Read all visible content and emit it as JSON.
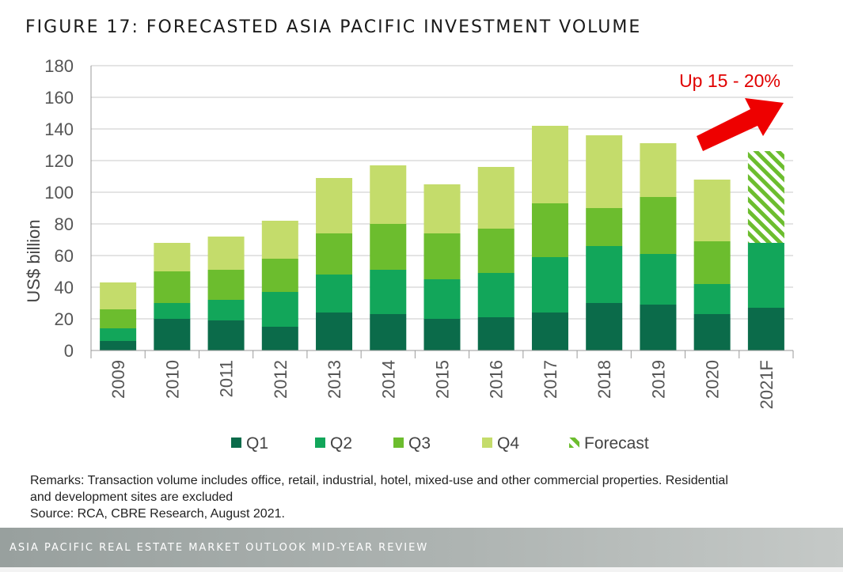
{
  "title": "FIGURE 17: FORECASTED ASIA PACIFIC INVESTMENT VOLUME",
  "remarks": {
    "line1": "Remarks: Transaction volume includes office, retail, industrial, hotel, mixed-use and other commercial properties. Residential",
    "line2": "and development sites are excluded",
    "source": "Source: RCA, CBRE Research, August 2021."
  },
  "footer": "ASIA PACIFIC REAL ESTATE MARKET OUTLOOK MID-YEAR REVIEW",
  "colors": {
    "Q1": "#0b6b4a",
    "Q2": "#12a65a",
    "Q3": "#6cbd2e",
    "Q4": "#c4dc6b",
    "forecast": "#6cbd2e",
    "arrow": "#ee0000",
    "annotation": "#e00000"
  },
  "chart_data": {
    "type": "bar",
    "stacked": true,
    "categories": [
      "2009",
      "2010",
      "2011",
      "2012",
      "2013",
      "2014",
      "2015",
      "2016",
      "2017",
      "2018",
      "2019",
      "2020",
      "2021F"
    ],
    "series": [
      {
        "name": "Q1",
        "values": [
          6,
          20,
          19,
          15,
          24,
          23,
          20,
          21,
          24,
          30,
          29,
          23,
          27
        ]
      },
      {
        "name": "Q2",
        "values": [
          8,
          10,
          13,
          22,
          24,
          28,
          25,
          28,
          35,
          36,
          32,
          19,
          41
        ]
      },
      {
        "name": "Q3",
        "values": [
          12,
          20,
          19,
          21,
          26,
          29,
          29,
          28,
          34,
          24,
          36,
          27,
          null
        ]
      },
      {
        "name": "Q4",
        "values": [
          17,
          18,
          21,
          24,
          35,
          37,
          31,
          39,
          49,
          46,
          34,
          39,
          null
        ]
      },
      {
        "name": "Forecast",
        "values": [
          null,
          null,
          null,
          null,
          null,
          null,
          null,
          null,
          null,
          null,
          null,
          null,
          58
        ]
      }
    ],
    "ylabel": "US$ billion",
    "xlabel": "",
    "ylim": [
      0,
      180
    ],
    "yticks": [
      "0",
      "20",
      "40",
      "60",
      "80",
      "100",
      "120",
      "140",
      "160",
      "180"
    ],
    "grid": true,
    "legend": "bottom",
    "annotation": "Up 15 - 20%"
  }
}
